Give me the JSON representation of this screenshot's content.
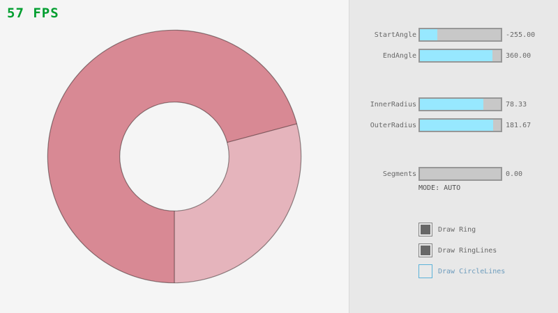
{
  "fps": {
    "label": "57 FPS",
    "color": "#009e2f"
  },
  "ring": {
    "single_color": "#e5b4bc",
    "overlap_color": "#d88994",
    "line_color": "rgba(20,10,12,0.45)"
  },
  "panel": {
    "sliders": [
      {
        "label": "StartAngle",
        "value": "-255.00",
        "fraction": 0.217
      },
      {
        "label": "EndAngle",
        "value": "360.00",
        "fraction": 0.9
      },
      {
        "label": "InnerRadius",
        "value": "78.33",
        "fraction": 0.783
      },
      {
        "label": "OuterRadius",
        "value": "181.67",
        "fraction": 0.908
      },
      {
        "label": "Segments",
        "value": "0.00",
        "fraction": 0.0
      }
    ],
    "mode_text": "MODE: AUTO",
    "checkboxes": [
      {
        "label": "Draw Ring",
        "checked": true,
        "focused": false
      },
      {
        "label": "Draw RingLines",
        "checked": true,
        "focused": false
      },
      {
        "label": "Draw CircleLines",
        "checked": false,
        "focused": true
      }
    ]
  }
}
